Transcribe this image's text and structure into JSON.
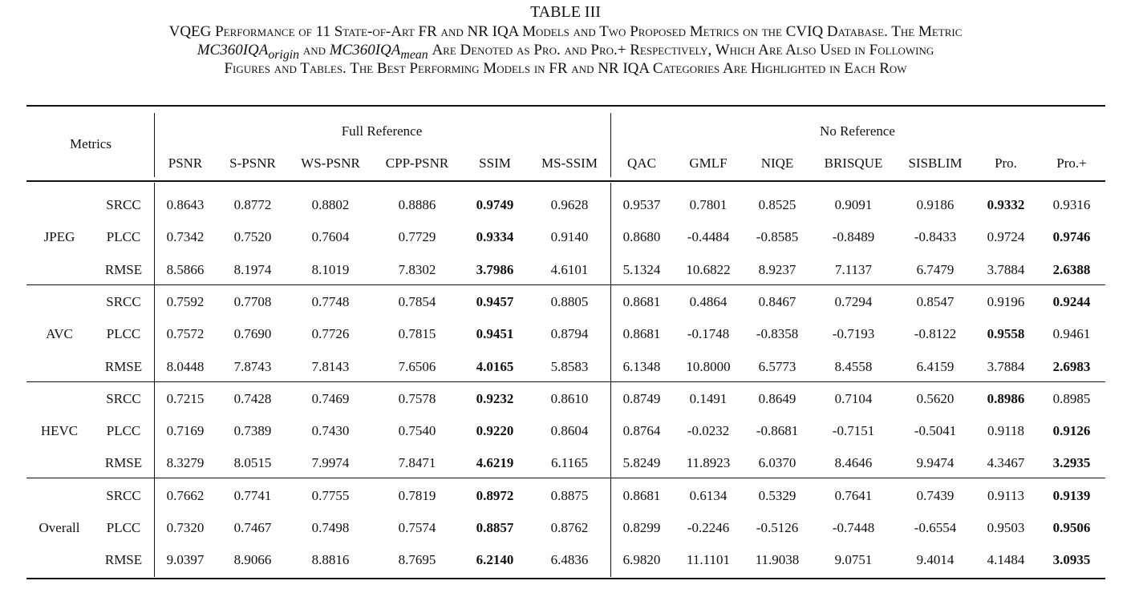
{
  "caption": {
    "title": "TABLE III",
    "line1": "VQEG Performance of 11 State-of-Art FR and NR IQA Models and Two Proposed Metrics on the CVIQ Database. The Metric",
    "line2": {
      "m1_base": "MC360IQA",
      "m1_sub": "origin",
      "and": "and",
      "m2_base": "MC360IQA",
      "m2_sub": "mean",
      "rest": "Are Denoted as Pro. and Pro.+ Respectively, Which Are Also Used in Following"
    },
    "line3": "Figures and Tables. The Best Performing Models in FR and NR IQA Categories Are Highlighted in Each Row"
  },
  "table": {
    "metrics_header": "Metrics",
    "group_headers": [
      "Full Reference",
      "No Reference"
    ],
    "columns": [
      "PSNR",
      "S-PSNR",
      "WS-PSNR",
      "CPP-PSNR",
      "SSIM",
      "MS-SSIM",
      "QAC",
      "GMLF",
      "NIQE",
      "BRISQUE",
      "SISBLIM",
      "Pro.",
      "Pro.+"
    ],
    "groups": [
      {
        "name": "JPEG",
        "rows": [
          {
            "measure": "SRCC",
            "values": [
              "0.8643",
              "0.8772",
              "0.8802",
              "0.8886",
              "0.9749",
              "0.9628",
              "0.9537",
              "0.7801",
              "0.8525",
              "0.9091",
              "0.9186",
              "0.9332",
              "0.9316"
            ],
            "bold": [
              4,
              11
            ]
          },
          {
            "measure": "PLCC",
            "values": [
              "0.7342",
              "0.7520",
              "0.7604",
              "0.7729",
              "0.9334",
              "0.9140",
              "0.8680",
              "-0.4484",
              "-0.8585",
              "-0.8489",
              "-0.8433",
              "0.9724",
              "0.9746"
            ],
            "bold": [
              4,
              12
            ]
          },
          {
            "measure": "RMSE",
            "values": [
              "8.5866",
              "8.1974",
              "8.1019",
              "7.8302",
              "3.7986",
              "4.6101",
              "5.1324",
              "10.6822",
              "8.9237",
              "7.1137",
              "6.7479",
              "3.7884",
              "2.6388"
            ],
            "bold": [
              4,
              12
            ]
          }
        ]
      },
      {
        "name": "AVC",
        "rows": [
          {
            "measure": "SRCC",
            "values": [
              "0.7592",
              "0.7708",
              "0.7748",
              "0.7854",
              "0.9457",
              "0.8805",
              "0.8681",
              "0.4864",
              "0.8467",
              "0.7294",
              "0.8547",
              "0.9196",
              "0.9244"
            ],
            "bold": [
              4,
              12
            ]
          },
          {
            "measure": "PLCC",
            "values": [
              "0.7572",
              "0.7690",
              "0.7726",
              "0.7815",
              "0.9451",
              "0.8794",
              "0.8681",
              "-0.1748",
              "-0.8358",
              "-0.7193",
              "-0.8122",
              "0.9558",
              "0.9461"
            ],
            "bold": [
              4,
              11
            ]
          },
          {
            "measure": "RMSE",
            "values": [
              "8.0448",
              "7.8743",
              "7.8143",
              "7.6506",
              "4.0165",
              "5.8583",
              "6.1348",
              "10.8000",
              "6.5773",
              "8.4558",
              "6.4159",
              "3.7884",
              "2.6983"
            ],
            "bold": [
              4,
              12
            ]
          }
        ]
      },
      {
        "name": "HEVC",
        "rows": [
          {
            "measure": "SRCC",
            "values": [
              "0.7215",
              "0.7428",
              "0.7469",
              "0.7578",
              "0.9232",
              "0.8610",
              "0.8749",
              "0.1491",
              "0.8649",
              "0.7104",
              "0.5620",
              "0.8986",
              "0.8985"
            ],
            "bold": [
              4,
              11
            ]
          },
          {
            "measure": "PLCC",
            "values": [
              "0.7169",
              "0.7389",
              "0.7430",
              "0.7540",
              "0.9220",
              "0.8604",
              "0.8764",
              "-0.0232",
              "-0.8681",
              "-0.7151",
              "-0.5041",
              "0.9118",
              "0.9126"
            ],
            "bold": [
              4,
              12
            ]
          },
          {
            "measure": "RMSE",
            "values": [
              "8.3279",
              "8.0515",
              "7.9974",
              "7.8471",
              "4.6219",
              "6.1165",
              "5.8249",
              "11.8923",
              "6.0370",
              "8.4646",
              "9.9474",
              "4.3467",
              "3.2935"
            ],
            "bold": [
              4,
              12
            ]
          }
        ]
      },
      {
        "name": "Overall",
        "rows": [
          {
            "measure": "SRCC",
            "values": [
              "0.7662",
              "0.7741",
              "0.7755",
              "0.7819",
              "0.8972",
              "0.8875",
              "0.8681",
              "0.6134",
              "0.5329",
              "0.7641",
              "0.7439",
              "0.9113",
              "0.9139"
            ],
            "bold": [
              4,
              12
            ]
          },
          {
            "measure": "PLCC",
            "values": [
              "0.7320",
              "0.7467",
              "0.7498",
              "0.7574",
              "0.8857",
              "0.8762",
              "0.8299",
              "-0.2246",
              "-0.5126",
              "-0.7448",
              "-0.6554",
              "0.9503",
              "0.9506"
            ],
            "bold": [
              4,
              12
            ]
          },
          {
            "measure": "RMSE",
            "values": [
              "9.0397",
              "8.9066",
              "8.8816",
              "8.7695",
              "6.2140",
              "6.4836",
              "6.9820",
              "11.1101",
              "11.9038",
              "9.0751",
              "9.4014",
              "4.1484",
              "3.0935"
            ],
            "bold": [
              4,
              12
            ]
          }
        ]
      }
    ]
  }
}
